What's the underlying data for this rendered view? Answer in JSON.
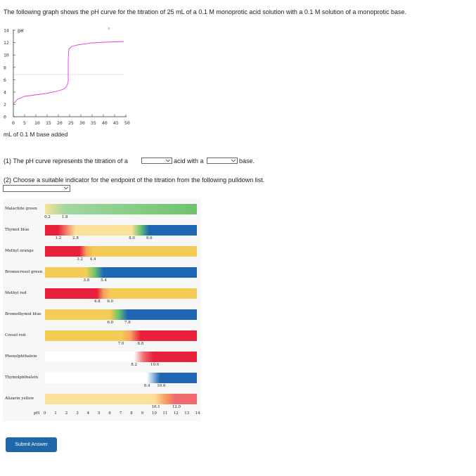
{
  "intro": "The following graph shows the pH curve for the titration of 25 mL of a 0.1 M monoprotic acid solution with a 0.1 M solution of a monoprotic base.",
  "graph": {
    "y_label": "pH",
    "y_ticks": [
      "14",
      "12",
      "10",
      "8",
      "6",
      "4",
      "2",
      "0"
    ],
    "x_ticks": [
      "0",
      "5",
      "10",
      "15",
      "20",
      "25",
      "30",
      "35",
      "40",
      "45",
      "50"
    ],
    "x_label": "mL of 0.1 M base added",
    "curve_color": "#e040e0"
  },
  "q1": {
    "prefix": "(1) The pH curve represents the titration of a",
    "middle": "acid with a",
    "suffix": "base."
  },
  "q2": {
    "text": "(2) Choose a suitable indicator for the endpoint of the titration from the following pulldown list."
  },
  "indicators": [
    {
      "name": "Malachite green",
      "low": "0.2",
      "high": "1.8"
    },
    {
      "name": "Thymol blue",
      "low": "1.2",
      "high": "2.8",
      "low2": "8.0",
      "high2": "9.6"
    },
    {
      "name": "Methyl orange",
      "low": "3.2",
      "high": "4.4"
    },
    {
      "name": "Bromocresol green",
      "low": "3.8",
      "high": "5.4"
    },
    {
      "name": "Methyl red",
      "low": "4.8",
      "high": "6.0"
    },
    {
      "name": "Bromothymol blue",
      "low": "6.0",
      "high": "7.6"
    },
    {
      "name": "Cresol red",
      "low": "7.0",
      "high": "8.8"
    },
    {
      "name": "Phenolphthalein",
      "low": "8.2",
      "high": "10.0"
    },
    {
      "name": "Thymolphthalein",
      "low": "9.4",
      "high": "10.6"
    },
    {
      "name": "Alizarin yellow",
      "low": "10.1",
      "high": "12.0"
    }
  ],
  "ph_axis": {
    "label": "pH",
    "ticks": [
      "0",
      "1",
      "2",
      "3",
      "4",
      "5",
      "6",
      "7",
      "8",
      "9",
      "10",
      "11",
      "12",
      "13",
      "14"
    ]
  },
  "submit_label": "Submit Answer"
}
